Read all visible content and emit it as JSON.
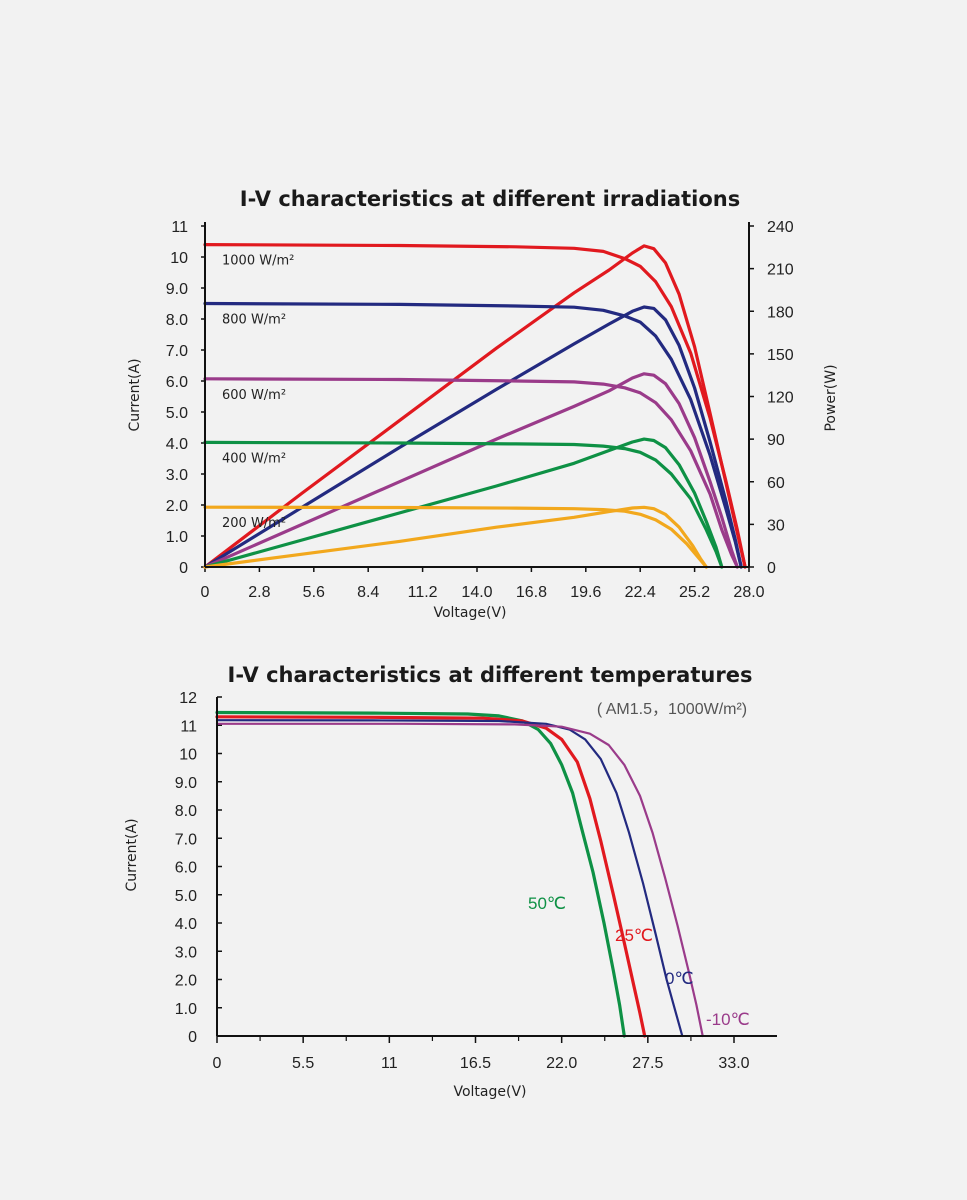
{
  "colors": {
    "c1000": "#e1191f",
    "c800": "#232a80",
    "c600": "#9a3b8a",
    "c400": "#0e9145",
    "c200": "#f2a81d",
    "t50": "#0e9145",
    "t25": "#e1191f",
    "t0": "#232a80",
    "tm10": "#9a3b8a"
  },
  "chart_data": [
    {
      "type": "line",
      "title": "I-V characteristics at different irradiations",
      "xlabel": "Voltage(V)",
      "ylabel": "Current(A)",
      "y2label": "Power(W)",
      "xlim": [
        0,
        28.0
      ],
      "ylim": [
        0,
        11
      ],
      "y2lim": [
        0,
        240
      ],
      "x_ticks": [
        "0",
        "2.8",
        "5.6",
        "8.4",
        "11.2",
        "14.0",
        "16.8",
        "19.6",
        "22.4",
        "25.2",
        "28.0"
      ],
      "y_ticks": [
        "0",
        "1.0",
        "2.0",
        "3.0",
        "4.0",
        "5.0",
        "6.0",
        "7.0",
        "8.0",
        "9.0",
        "10",
        "11"
      ],
      "y2_ticks": [
        "0",
        "30",
        "60",
        "90",
        "120",
        "150",
        "180",
        "210",
        "240"
      ],
      "grid": false,
      "series": [
        {
          "name": "1000 W/m²",
          "color_key": "c1000",
          "iv": [
            [
              0,
              10.4
            ],
            [
              10,
              10.37
            ],
            [
              16,
              10.33
            ],
            [
              19,
              10.28
            ],
            [
              20.5,
              10.18
            ],
            [
              21.6,
              9.95
            ],
            [
              22.4,
              9.7
            ],
            [
              23.2,
              9.2
            ],
            [
              24,
              8.4
            ],
            [
              25,
              6.9
            ],
            [
              26,
              4.8
            ],
            [
              26.8,
              2.8
            ],
            [
              27.4,
              1.2
            ],
            [
              27.8,
              0
            ]
          ],
          "pv": [
            [
              0,
              0
            ],
            [
              5,
              52
            ],
            [
              10,
              103
            ],
            [
              15,
              154
            ],
            [
              19,
              193
            ],
            [
              20.8,
              209
            ],
            [
              22,
              221
            ],
            [
              22.6,
              226
            ],
            [
              23.1,
              224
            ],
            [
              23.7,
              214
            ],
            [
              24.4,
              192
            ],
            [
              25.2,
              155
            ],
            [
              26,
              108
            ],
            [
              26.8,
              60
            ],
            [
              27.4,
              24
            ],
            [
              27.8,
              0
            ]
          ]
        },
        {
          "name": "800 W/m²",
          "color_key": "c800",
          "iv": [
            [
              0,
              8.5
            ],
            [
              10,
              8.47
            ],
            [
              16,
              8.42
            ],
            [
              19,
              8.38
            ],
            [
              20.5,
              8.28
            ],
            [
              21.6,
              8.1
            ],
            [
              22.4,
              7.9
            ],
            [
              23.2,
              7.45
            ],
            [
              24,
              6.7
            ],
            [
              25,
              5.4
            ],
            [
              26,
              3.6
            ],
            [
              26.8,
              1.9
            ],
            [
              27.3,
              0.8
            ],
            [
              27.6,
              0
            ]
          ],
          "pv": [
            [
              0,
              0
            ],
            [
              5,
              42
            ],
            [
              10,
              84
            ],
            [
              15,
              125
            ],
            [
              19,
              157
            ],
            [
              20.8,
              171
            ],
            [
              22,
              180
            ],
            [
              22.6,
              183
            ],
            [
              23.1,
              182
            ],
            [
              23.7,
              174
            ],
            [
              24.4,
              156
            ],
            [
              25.2,
              126
            ],
            [
              26,
              88
            ],
            [
              26.8,
              47
            ],
            [
              27.3,
              19
            ],
            [
              27.6,
              0
            ]
          ]
        },
        {
          "name": "600 W/m²",
          "color_key": "c600",
          "iv": [
            [
              0,
              6.07
            ],
            [
              10,
              6.05
            ],
            [
              16,
              6.0
            ],
            [
              19,
              5.97
            ],
            [
              20.5,
              5.9
            ],
            [
              21.6,
              5.78
            ],
            [
              22.4,
              5.62
            ],
            [
              23.2,
              5.3
            ],
            [
              24,
              4.75
            ],
            [
              25,
              3.75
            ],
            [
              26,
              2.35
            ],
            [
              26.6,
              1.2
            ],
            [
              27.1,
              0.4
            ],
            [
              27.4,
              0
            ]
          ],
          "pv": [
            [
              0,
              0
            ],
            [
              5,
              30
            ],
            [
              10,
              60
            ],
            [
              15,
              90
            ],
            [
              19,
              113
            ],
            [
              20.8,
              124
            ],
            [
              22,
              133
            ],
            [
              22.6,
              136
            ],
            [
              23.1,
              135
            ],
            [
              23.7,
              129
            ],
            [
              24.4,
              115
            ],
            [
              25.2,
              91
            ],
            [
              26,
              60
            ],
            [
              26.6,
              35
            ],
            [
              27.1,
              12
            ],
            [
              27.4,
              0
            ]
          ]
        },
        {
          "name": "400 W/m²",
          "color_key": "c400",
          "iv": [
            [
              0,
              4.02
            ],
            [
              10,
              4.0
            ],
            [
              16,
              3.97
            ],
            [
              19,
              3.95
            ],
            [
              20.5,
              3.9
            ],
            [
              21.6,
              3.82
            ],
            [
              22.4,
              3.7
            ],
            [
              23.2,
              3.45
            ],
            [
              24,
              3.0
            ],
            [
              25,
              2.2
            ],
            [
              25.8,
              1.2
            ],
            [
              26.3,
              0.5
            ],
            [
              26.6,
              0
            ]
          ],
          "pv": [
            [
              0,
              0
            ],
            [
              5,
              19
            ],
            [
              10,
              38
            ],
            [
              15,
              57
            ],
            [
              19,
              73
            ],
            [
              20.8,
              82
            ],
            [
              22,
              88
            ],
            [
              22.6,
              90
            ],
            [
              23.1,
              89
            ],
            [
              23.7,
              84
            ],
            [
              24.4,
              72
            ],
            [
              25.2,
              52
            ],
            [
              25.8,
              32
            ],
            [
              26.3,
              14
            ],
            [
              26.6,
              0
            ]
          ]
        },
        {
          "name": "200 W/m²",
          "color_key": "c200",
          "iv": [
            [
              0,
              1.93
            ],
            [
              10,
              1.92
            ],
            [
              16,
              1.9
            ],
            [
              19,
              1.88
            ],
            [
              20.5,
              1.85
            ],
            [
              21.6,
              1.8
            ],
            [
              22.4,
              1.7
            ],
            [
              23.2,
              1.52
            ],
            [
              24,
              1.22
            ],
            [
              24.8,
              0.75
            ],
            [
              25.4,
              0.3
            ],
            [
              25.8,
              0
            ]
          ],
          "pv": [
            [
              0,
              0
            ],
            [
              5,
              9
            ],
            [
              10,
              18
            ],
            [
              15,
              28
            ],
            [
              19,
              35
            ],
            [
              20.8,
              39
            ],
            [
              22,
              41.5
            ],
            [
              22.6,
              42
            ],
            [
              23.1,
              41
            ],
            [
              23.7,
              37
            ],
            [
              24.4,
              28
            ],
            [
              25.1,
              15
            ],
            [
              25.5,
              6
            ],
            [
              25.8,
              0
            ]
          ]
        }
      ]
    },
    {
      "type": "line",
      "title": "I-V characteristics at different temperatures",
      "subtitle": "( AM1.5，1000W/m²)",
      "xlabel": "Voltage(V)",
      "ylabel": "Current(A)",
      "xlim": [
        0,
        33.0
      ],
      "ylim": [
        0,
        12
      ],
      "x_ticks": [
        "0",
        "5.5",
        "11",
        "16.5",
        "22.0",
        "27.5",
        "33.0"
      ],
      "y_ticks": [
        "0",
        "1.0",
        "2.0",
        "3.0",
        "4.0",
        "5.0",
        "6.0",
        "7.0",
        "8.0",
        "9.0",
        "10",
        "11",
        "12"
      ],
      "grid": false,
      "series": [
        {
          "name": "50℃",
          "color_key": "t50",
          "iv": [
            [
              0,
              11.45
            ],
            [
              10,
              11.43
            ],
            [
              16,
              11.4
            ],
            [
              18,
              11.33
            ],
            [
              19.5,
              11.15
            ],
            [
              20.5,
              10.85
            ],
            [
              21.3,
              10.35
            ],
            [
              22,
              9.6
            ],
            [
              22.7,
              8.6
            ],
            [
              23.3,
              7.3
            ],
            [
              24,
              5.8
            ],
            [
              24.7,
              4.0
            ],
            [
              25.3,
              2.3
            ],
            [
              25.7,
              1.1
            ],
            [
              26,
              0
            ]
          ]
        },
        {
          "name": "25℃",
          "color_key": "t25",
          "iv": [
            [
              0,
              11.3
            ],
            [
              10,
              11.28
            ],
            [
              17,
              11.25
            ],
            [
              19.5,
              11.15
            ],
            [
              21,
              10.9
            ],
            [
              22,
              10.5
            ],
            [
              23,
              9.7
            ],
            [
              23.8,
              8.4
            ],
            [
              24.5,
              6.9
            ],
            [
              25.3,
              5.0
            ],
            [
              26,
              3.3
            ],
            [
              26.6,
              1.8
            ],
            [
              27,
              0.8
            ],
            [
              27.3,
              0
            ]
          ]
        },
        {
          "name": "0℃",
          "color_key": "t0",
          "iv": [
            [
              0,
              11.18
            ],
            [
              10,
              11.17
            ],
            [
              18,
              11.15
            ],
            [
              21,
              11.05
            ],
            [
              22.5,
              10.85
            ],
            [
              23.5,
              10.5
            ],
            [
              24.5,
              9.8
            ],
            [
              25.5,
              8.6
            ],
            [
              26.3,
              7.2
            ],
            [
              27.2,
              5.4
            ],
            [
              28,
              3.6
            ],
            [
              28.7,
              2.0
            ],
            [
              29.3,
              0.8
            ],
            [
              29.7,
              0
            ]
          ]
        },
        {
          "name": "-10℃",
          "color_key": "tm10",
          "iv": [
            [
              0,
              11.05
            ],
            [
              12,
              11.05
            ],
            [
              19,
              11.03
            ],
            [
              22,
              10.95
            ],
            [
              23.8,
              10.7
            ],
            [
              25,
              10.3
            ],
            [
              26,
              9.6
            ],
            [
              27,
              8.5
            ],
            [
              27.8,
              7.2
            ],
            [
              28.6,
              5.6
            ],
            [
              29.4,
              3.9
            ],
            [
              30.1,
              2.3
            ],
            [
              30.6,
              1.1
            ],
            [
              31,
              0
            ]
          ]
        }
      ]
    }
  ]
}
